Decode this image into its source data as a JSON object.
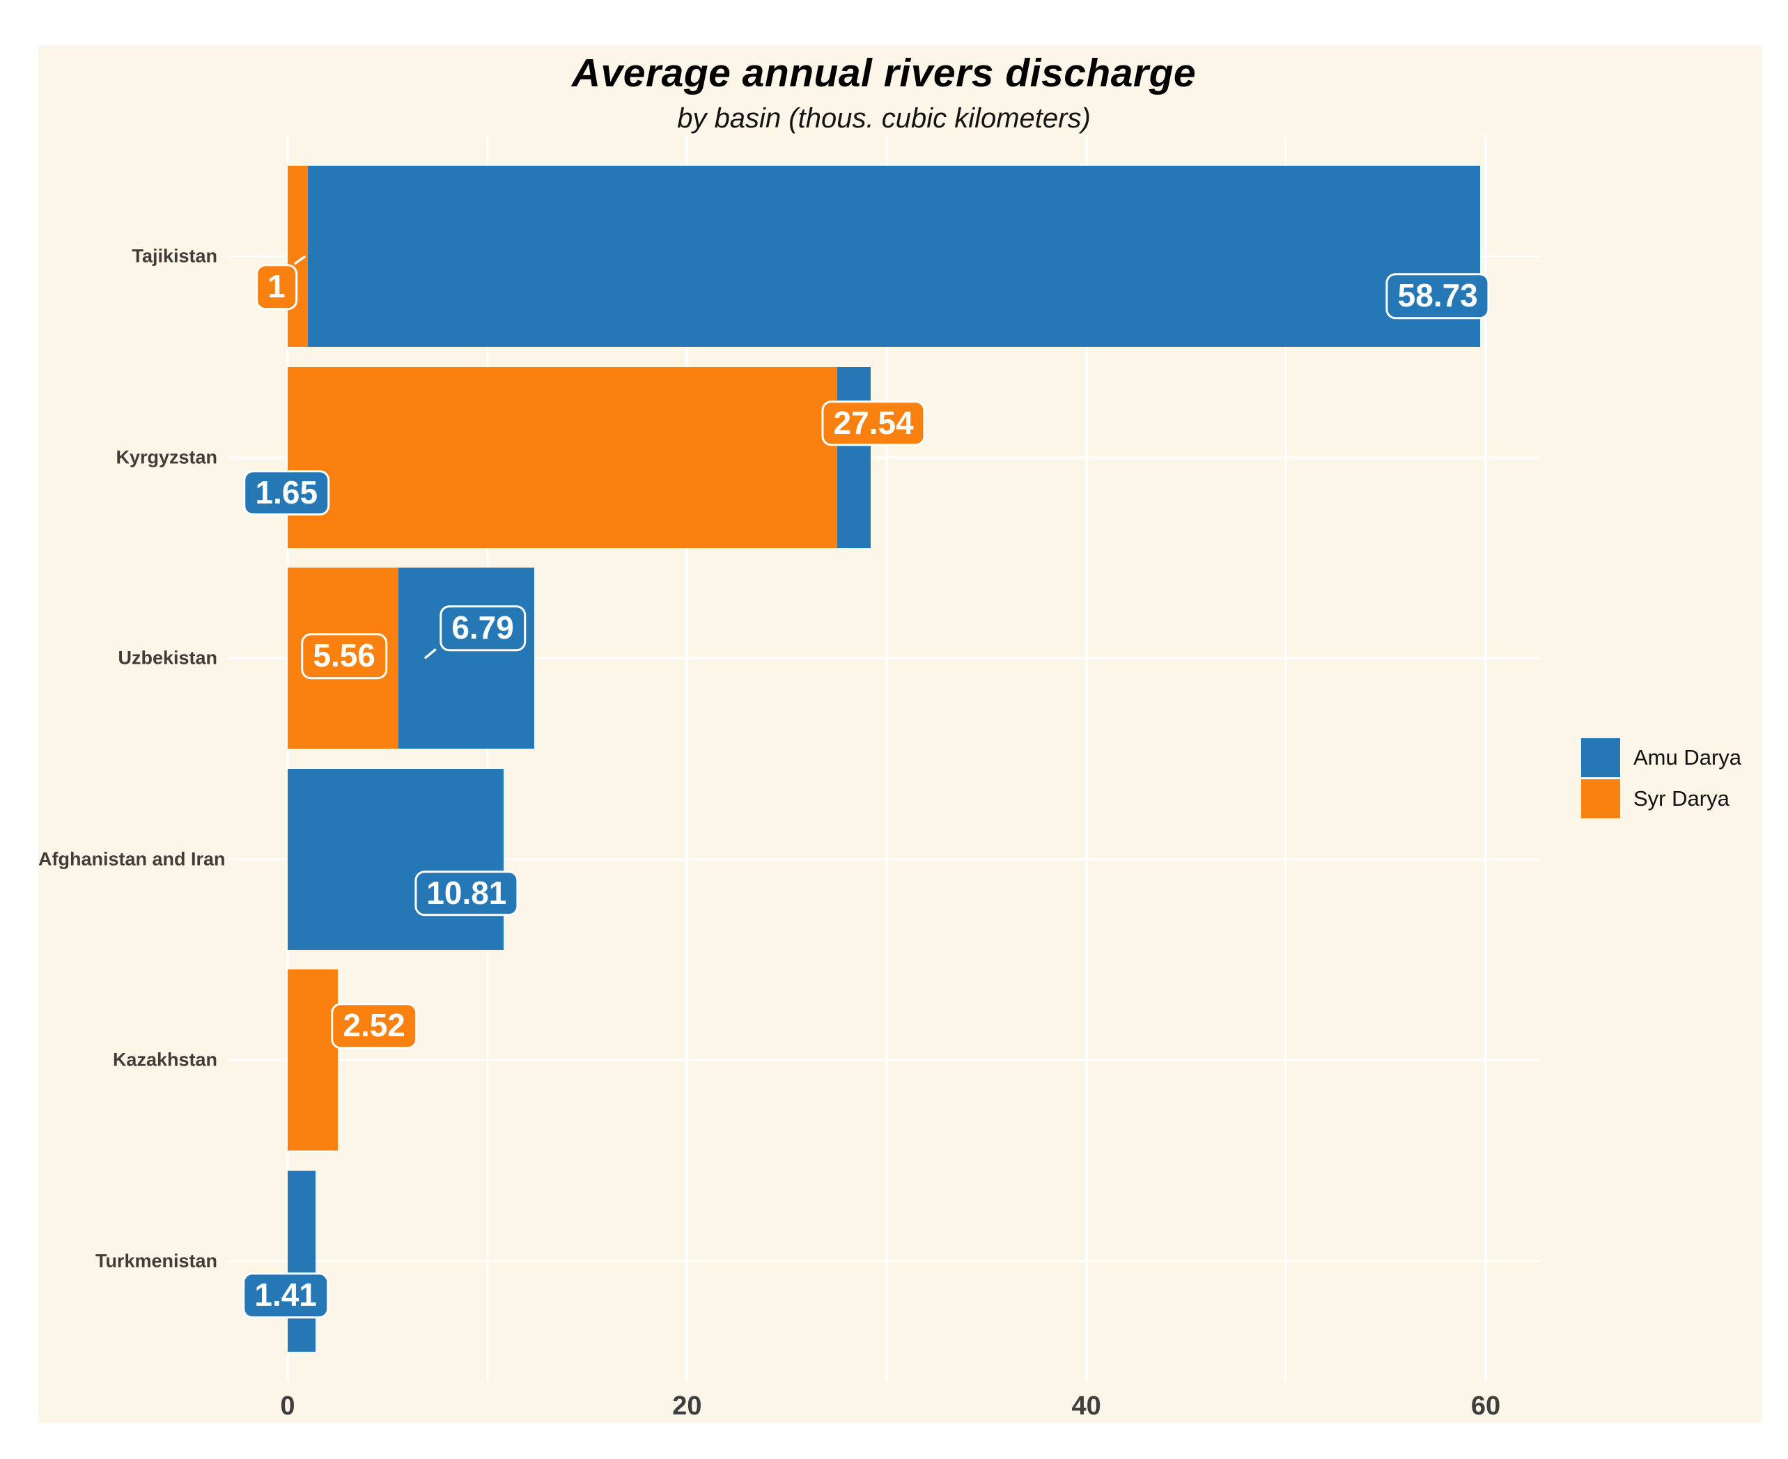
{
  "page_background": "#ffffff",
  "plot_background": "#fbf6e8",
  "grid_color": "#ffffff",
  "axis_text_color": "#3e3e3e",
  "title": "Average annual rivers discharge",
  "subtitle": "by basin (thous. cubic kilometers)",
  "legend": {
    "position": "right",
    "items": [
      {
        "label": "Amu Darya"
      },
      {
        "label": "Syr Darya"
      }
    ]
  },
  "x_axis": {
    "tick_labels": [
      "0",
      "20",
      "40",
      "60"
    ]
  },
  "chart_data": {
    "type": "bar",
    "orientation": "horizontal",
    "stacked": true,
    "grid": "white vertical major (0,20,40,60) + minor (10,30,50), white horizontal line at each category",
    "legend_position": "right",
    "title": "Average annual rivers discharge",
    "subtitle": "by basin (thous. cubic kilometers)",
    "xlabel": "",
    "ylabel": "",
    "xlim": [
      -3,
      62.72
    ],
    "x_ticks": [
      0,
      20,
      40,
      60
    ],
    "x_minor_ticks": [
      10,
      30,
      50
    ],
    "categories": [
      "Tajikistan",
      "Kyrgyzstan",
      "Uzbekistan",
      "Afghanistan and Iran",
      "Kazakhstan",
      "Turkmenistan"
    ],
    "stack_order": [
      "Syr Darya",
      "Amu Darya"
    ],
    "series": [
      {
        "name": "Amu Darya",
        "color": "#2577b5",
        "values": [
          58.73,
          1.65,
          6.79,
          10.81,
          null,
          1.41
        ]
      },
      {
        "name": "Syr Darya",
        "color": "#fa800f",
        "values": [
          1,
          27.54,
          5.56,
          null,
          2.52,
          null
        ]
      }
    ],
    "value_labels": [
      {
        "row": 0,
        "series": "Syr Darya",
        "text": "1",
        "x": -0.56,
        "dy": 44,
        "leader": {
          "x1": 0.34,
          "dy1": 11,
          "x2": 0.88,
          "dy2": 0
        }
      },
      {
        "row": 0,
        "series": "Amu Darya",
        "text": "58.73",
        "x": 57.6,
        "dy": 57
      },
      {
        "row": 1,
        "series": "Syr Darya",
        "text": "27.54",
        "x": 29.34,
        "dy": -49
      },
      {
        "row": 1,
        "series": "Amu Darya",
        "text": "1.65",
        "x": -0.06,
        "dy": 51
      },
      {
        "row": 2,
        "series": "Syr Darya",
        "text": "5.56",
        "x": 2.83,
        "dy": -3
      },
      {
        "row": 2,
        "series": "Amu Darya",
        "text": "6.79",
        "x": 9.77,
        "dy": -43,
        "leader": {
          "x1": 6.87,
          "dy1": 0,
          "x2": 7.42,
          "dy2": -13
        }
      },
      {
        "row": 3,
        "series": "Amu Darya",
        "text": "10.81",
        "x": 8.96,
        "dy": 49
      },
      {
        "row": 4,
        "series": "Syr Darya",
        "text": "2.52",
        "x": 4.33,
        "dy": -49
      },
      {
        "row": 5,
        "series": "Amu Darya",
        "text": "1.41",
        "x": -0.1,
        "dy": 49
      }
    ]
  }
}
